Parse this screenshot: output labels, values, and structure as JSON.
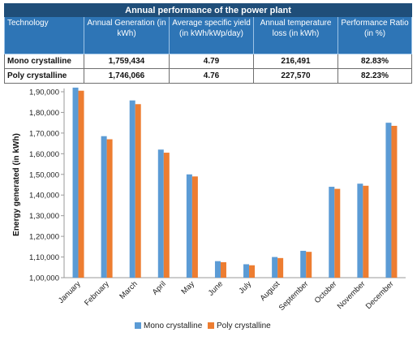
{
  "table": {
    "title": "Annual performance of the power plant",
    "headers": [
      "Technology",
      "Annual Generation (in kWh)",
      "Average specific yield (in kWh/kWp/day)",
      "Annual temperature loss (in kWh)",
      "Performance Ratio (in %)"
    ],
    "rows": [
      [
        "Mono crystalline",
        "1,759,434",
        "4.79",
        "216,491",
        "82.83%"
      ],
      [
        "Poly crystalline",
        "1,746,066",
        "4.76",
        "227,570",
        "82.23%"
      ]
    ]
  },
  "chart_data": {
    "type": "bar",
    "title": "",
    "xlabel": "",
    "ylabel": "Energy generated (in kWh)",
    "ylim": [
      100000,
      190000
    ],
    "yticks": [
      100000,
      110000,
      120000,
      130000,
      140000,
      150000,
      160000,
      170000,
      180000,
      190000
    ],
    "ytick_labels": [
      "1,00,000",
      "1,10,000",
      "1,20,000",
      "1,30,000",
      "1,40,000",
      "1,50,000",
      "1,60,000",
      "1,70,000",
      "1,80,000",
      "1,90,000"
    ],
    "grid": false,
    "legend_position": "bottom",
    "categories": [
      "January",
      "February",
      "March",
      "April",
      "May",
      "June",
      "July",
      "August",
      "September",
      "October",
      "November",
      "December"
    ],
    "series": [
      {
        "name": "Mono crystalline",
        "color": "#5b9bd5",
        "values": [
          192000,
          168500,
          185800,
          162000,
          150000,
          108000,
          106500,
          110000,
          113000,
          144000,
          145500,
          175000
        ]
      },
      {
        "name": "Poly crystalline",
        "color": "#ed7d31",
        "values": [
          190500,
          167000,
          184000,
          160500,
          149000,
          107500,
          106000,
          109500,
          112500,
          143000,
          144500,
          173500
        ]
      }
    ]
  }
}
